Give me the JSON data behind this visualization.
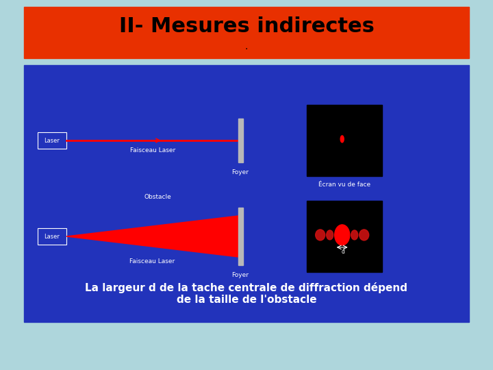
{
  "bg_color": "#aed6dc",
  "title_bg_color": "#e83000",
  "title_text": "II- Mesures indirectes",
  "title_sub": ".",
  "title_color": "#000000",
  "panel_bg_color": "#2233bb",
  "bottom_text_line1": "La largeur d de la tache centrale de diffraction dépend",
  "bottom_text_line2": "de la taille de l'obstacle",
  "label_laser1": "Laser",
  "label_faisceau1": "Faisceau Laser",
  "label_ecran1": "Écran vu de face",
  "label_foyer1": "Foyer",
  "label_obstacle": "Obstacle",
  "label_laser2": "Laser",
  "label_faisceau2": "Faisceau Laser",
  "label_foyer2": "Foyer",
  "label_d": "d"
}
